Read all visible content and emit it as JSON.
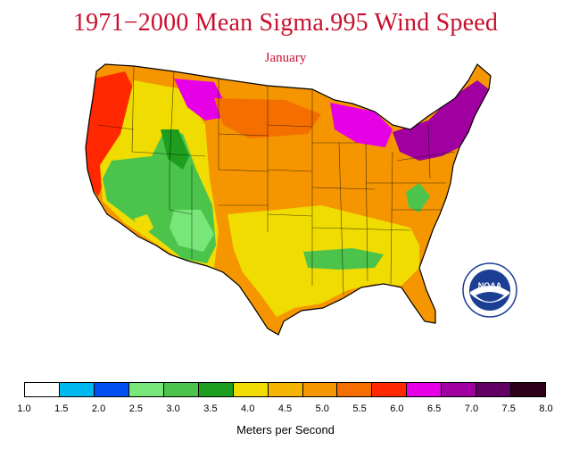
{
  "title": "1971−2000 Mean Sigma.995 Wind Speed",
  "subtitle": "January",
  "colorbar": {
    "ticks": [
      "1.0",
      "1.5",
      "2.0",
      "2.5",
      "3.0",
      "3.5",
      "4.0",
      "4.5",
      "5.0",
      "5.5",
      "6.0",
      "6.5",
      "7.0",
      "7.5",
      "8.0"
    ],
    "colors": [
      "#ffffff",
      "#00b8f0",
      "#0050f0",
      "#78e678",
      "#4cc44c",
      "#1e9e1e",
      "#f0dc00",
      "#f5b400",
      "#f59600",
      "#f56e00",
      "#ff2800",
      "#e600e6",
      "#a000a0",
      "#640064",
      "#2d0019"
    ],
    "units_label": "Meters per Second"
  },
  "logo": {
    "text": "NOAA",
    "icon": "noaa-logo"
  },
  "map": {
    "region": "contiguous-united-states",
    "base_color": "#f59600",
    "zones": [
      {
        "name": "rocky-mountain-green-zone",
        "color": "#4cc44c"
      },
      {
        "name": "four-corners-light-green-zone",
        "color": "#78e678"
      },
      {
        "name": "central-rockies-dark-green-zone",
        "color": "#1e9e1e"
      },
      {
        "name": "intermountain-yellow-zone",
        "color": "#f0dc00"
      },
      {
        "name": "pacific-coast-red-zone",
        "color": "#ff2800"
      },
      {
        "name": "montana-magenta-zone",
        "color": "#e600e6"
      },
      {
        "name": "great-lakes-magenta-zone",
        "color": "#e600e6"
      },
      {
        "name": "new-england-purple-zone",
        "color": "#a000a0"
      },
      {
        "name": "gulf-coast-yellow-zone",
        "color": "#f0dc00"
      },
      {
        "name": "mississippi-valley-green-zone",
        "color": "#4cc44c"
      },
      {
        "name": "appalachian-green-zone",
        "color": "#4cc44c"
      },
      {
        "name": "northern-plains-red-orange-zone",
        "color": "#f56e00"
      }
    ]
  }
}
